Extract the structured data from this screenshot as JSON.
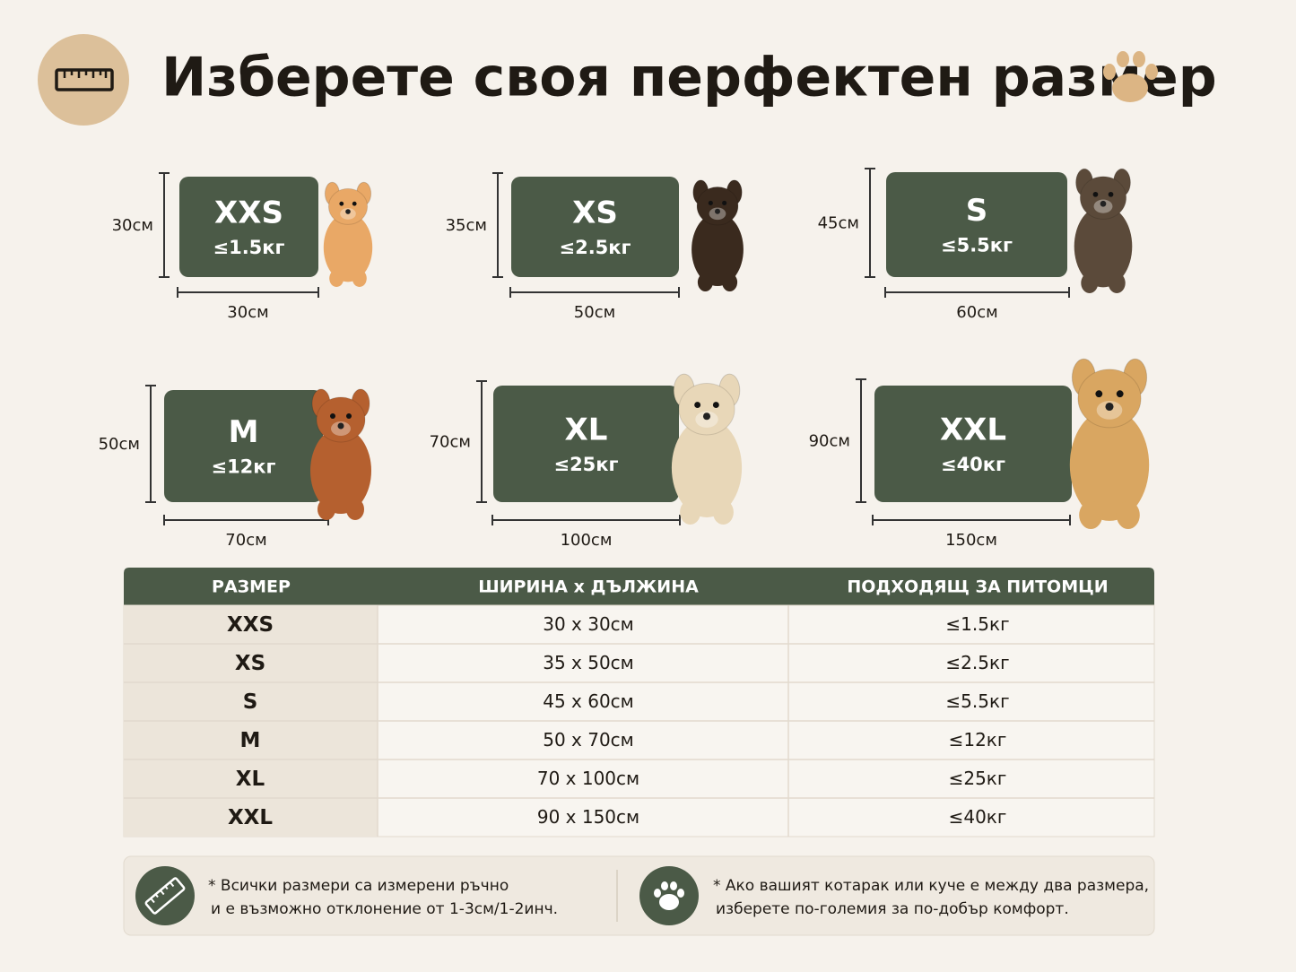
{
  "header": {
    "title": "Изберете своя перфектен размер"
  },
  "sizes": [
    {
      "name": "XXS",
      "weight": "≤1.5кг",
      "height": "30см",
      "width": "30см"
    },
    {
      "name": "XS",
      "weight": "≤2.5кг",
      "height": "35см",
      "width": "50см"
    },
    {
      "name": "S",
      "weight": "≤5.5кг",
      "height": "45см",
      "width": "60см"
    },
    {
      "name": "M",
      "weight": "≤12кг",
      "height": "50см",
      "width": "70см"
    },
    {
      "name": "XL",
      "weight": "≤25кг",
      "height": "70см",
      "width": "100см"
    },
    {
      "name": "XXL",
      "weight": "≤40кг",
      "height": "90см",
      "width": "150см"
    }
  ],
  "table": {
    "headers": [
      "РАЗМЕР",
      "ШИРИНА x ДЪЛЖИНА",
      "ПОДХОДЯЩ ЗА ПИТОМЦИ"
    ],
    "rows": [
      [
        "XXS",
        "30 x 30см",
        "≤1.5кг"
      ],
      [
        "XS",
        "35 x 50см",
        "≤2.5кг"
      ],
      [
        "S",
        "45 x 60см",
        "≤5.5кг"
      ],
      [
        "M",
        "50 x 70см",
        "≤12кг"
      ],
      [
        "XL",
        "70 x 100см",
        "≤25кг"
      ],
      [
        "XXL",
        "90 x 150см",
        "≤40кг"
      ]
    ]
  },
  "notes": [
    {
      "lines": [
        "* Всички размери са измерени ръчно",
        "и е възможно отклонение от 1-3см/1-2инч."
      ]
    },
    {
      "lines": [
        "* Ако вашият котарак или куче е между два размера,",
        "изберете по-големия за по-добър комфорт."
      ]
    }
  ]
}
